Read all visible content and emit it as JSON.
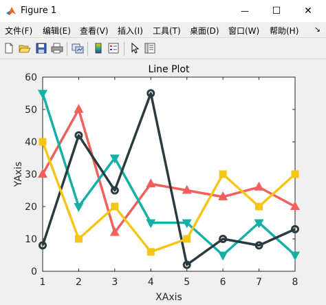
{
  "window": {
    "title": "Figure 1",
    "minimize_glyph": "—",
    "maximize_glyph": "☐",
    "close_glyph": "✕"
  },
  "menu": {
    "items": [
      "文件(F)",
      "编辑(E)",
      "查看(V)",
      "插入(I)",
      "工具(T)",
      "桌面(D)",
      "窗口(W)",
      "帮助(H)"
    ],
    "overflow_glyph": "↘"
  },
  "toolbar": {
    "icons": [
      "new-figure-icon",
      "open-file-icon",
      "save-icon",
      "print-icon",
      "link-plot-icon",
      "colorbar-icon",
      "legend-icon",
      "pointer-icon",
      "property-inspector-icon"
    ]
  },
  "chart_data": {
    "type": "line",
    "title": "Line Plot",
    "xlabel": "XAxis",
    "ylabel": "YAxis",
    "x": [
      1,
      2,
      3,
      4,
      5,
      6,
      7,
      8
    ],
    "xlim": [
      1,
      8
    ],
    "ylim": [
      0,
      60
    ],
    "xticks": [
      "1",
      "2",
      "3",
      "4",
      "5",
      "6",
      "7",
      "8"
    ],
    "yticks": [
      "0",
      "10",
      "20",
      "30",
      "40",
      "50",
      "60"
    ],
    "grid": false,
    "series": [
      {
        "marker": "triangle-up",
        "color": "#f25f5c",
        "values": [
          30,
          50,
          12,
          27,
          25,
          23,
          26,
          20
        ]
      },
      {
        "marker": "triangle-down",
        "color": "#12b0a6",
        "values": [
          55,
          20,
          35,
          15,
          15,
          5,
          15,
          5
        ]
      },
      {
        "marker": "circle",
        "color": "#2a3b40",
        "values": [
          8,
          42,
          25,
          55,
          2,
          10,
          8,
          13
        ]
      },
      {
        "marker": "square",
        "color": "#f5c518",
        "values": [
          40,
          10,
          20,
          6,
          10,
          30,
          20,
          30
        ]
      }
    ]
  }
}
